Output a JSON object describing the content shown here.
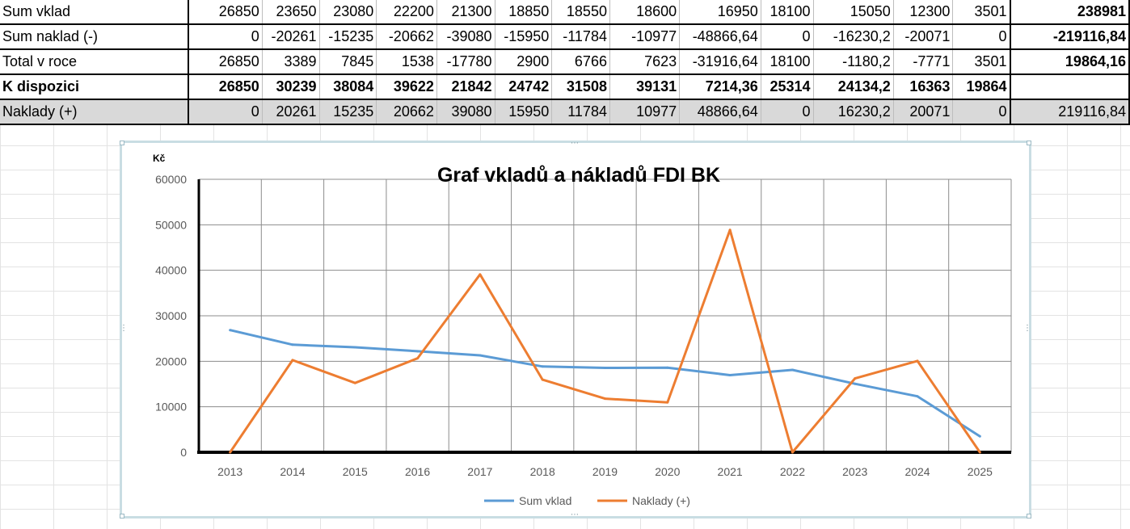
{
  "table": {
    "rows": [
      {
        "label": "Sum vklad",
        "style": "normal",
        "values": [
          "26850",
          "23650",
          "23080",
          "22200",
          "21300",
          "18850",
          "18550",
          "18600",
          "16950",
          "18100",
          "15050",
          "12300",
          "3501"
        ],
        "total": "238981",
        "total_bold": true
      },
      {
        "label": "Sum naklad (-)",
        "style": "normal",
        "values": [
          "0",
          "-20261",
          "-15235",
          "-20662",
          "-39080",
          "-15950",
          "-11784",
          "-10977",
          "-48866,64",
          "0",
          "-16230,2",
          "-20071",
          "0"
        ],
        "total": "-219116,84",
        "total_bold": true
      },
      {
        "label": "Total v roce",
        "style": "normal",
        "values": [
          "26850",
          "3389",
          "7845",
          "1538",
          "-17780",
          "2900",
          "6766",
          "7623",
          "-31916,64",
          "18100",
          "-1180,2",
          "-7771",
          "3501"
        ],
        "total": "19864,16",
        "total_bold": true
      },
      {
        "label": "K dispozici",
        "style": "bold",
        "values": [
          "26850",
          "30239",
          "38084",
          "39622",
          "21842",
          "24742",
          "31508",
          "39131",
          "7214,36",
          "25314",
          "24134,2",
          "16363",
          "19864"
        ],
        "total": "",
        "total_bold": true
      },
      {
        "label": "Naklady (+)",
        "style": "shaded",
        "values": [
          "0",
          "20261",
          "15235",
          "20662",
          "39080",
          "15950",
          "11784",
          "10977",
          "48866,64",
          "0",
          "16230,2",
          "20071",
          "0"
        ],
        "total": "219116,84",
        "total_bold": false
      }
    ]
  },
  "chart_data": {
    "type": "line",
    "title": "Graf vkladů a nákladů FDI BK",
    "ylabel": "Kč",
    "xlabel": "",
    "ylim": [
      0,
      60000
    ],
    "yticks": [
      "0",
      "10000",
      "20000",
      "30000",
      "40000",
      "50000",
      "60000"
    ],
    "categories": [
      "2013",
      "2014",
      "2015",
      "2016",
      "2017",
      "2018",
      "2019",
      "2020",
      "2021",
      "2022",
      "2023",
      "2024",
      "2025"
    ],
    "grid": true,
    "legend_position": "bottom",
    "series": [
      {
        "name": "Sum vklad",
        "color": "#5b9bd5",
        "values": [
          26850,
          23650,
          23080,
          22200,
          21300,
          18850,
          18550,
          18600,
          16950,
          18100,
          15050,
          12300,
          3501
        ]
      },
      {
        "name": "Naklady (+)",
        "color": "#ed7d31",
        "values": [
          0,
          20261,
          15235,
          20662,
          39080,
          15950,
          11784,
          10977,
          48866.64,
          0,
          16230.2,
          20071,
          0
        ]
      }
    ]
  }
}
